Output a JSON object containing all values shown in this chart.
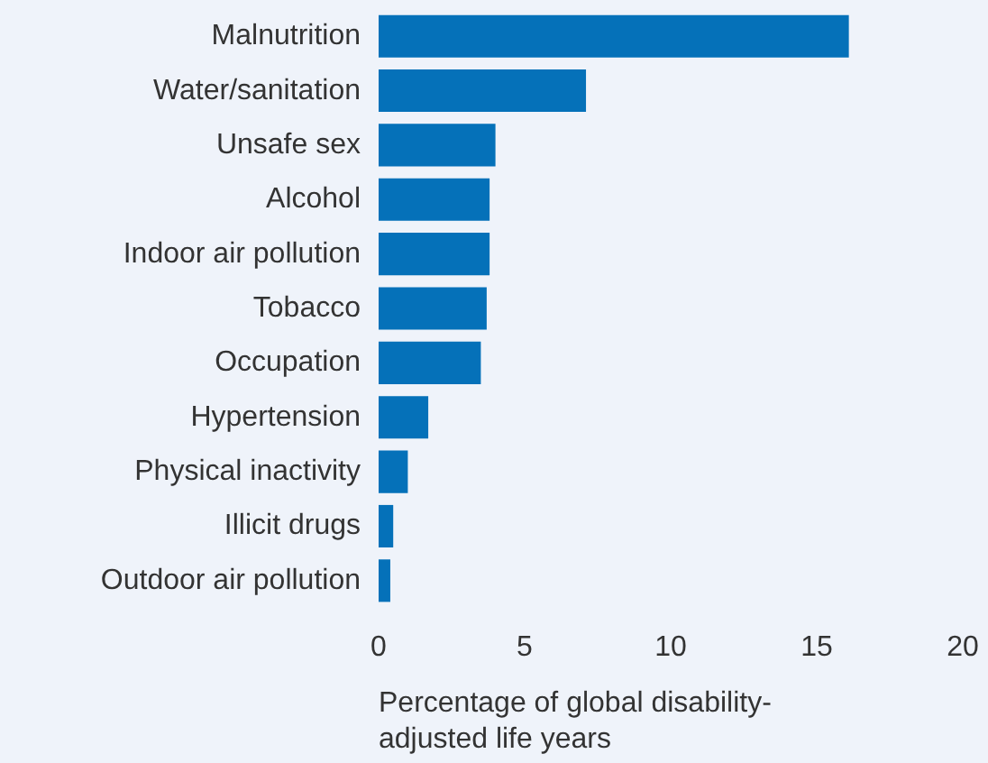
{
  "chart_data": {
    "type": "bar",
    "orientation": "horizontal",
    "xlabel": "Percentage of global disability-adjusted life years",
    "categories": [
      "Malnutrition",
      "Water/sanitation",
      "Unsafe sex",
      "Alcohol",
      "Indoor air pollution",
      "Tobacco",
      "Occupation",
      "Hypertension",
      "Physical inactivity",
      "Illicit drugs",
      "Outdoor air pollution"
    ],
    "values": [
      16.1,
      7.1,
      4.0,
      3.8,
      3.8,
      3.7,
      3.5,
      1.7,
      1.0,
      0.5,
      0.4
    ],
    "color": "#0571b9",
    "xlim": [
      0,
      20
    ],
    "xticks": [
      0,
      5,
      10,
      15,
      20
    ],
    "grid": false
  }
}
